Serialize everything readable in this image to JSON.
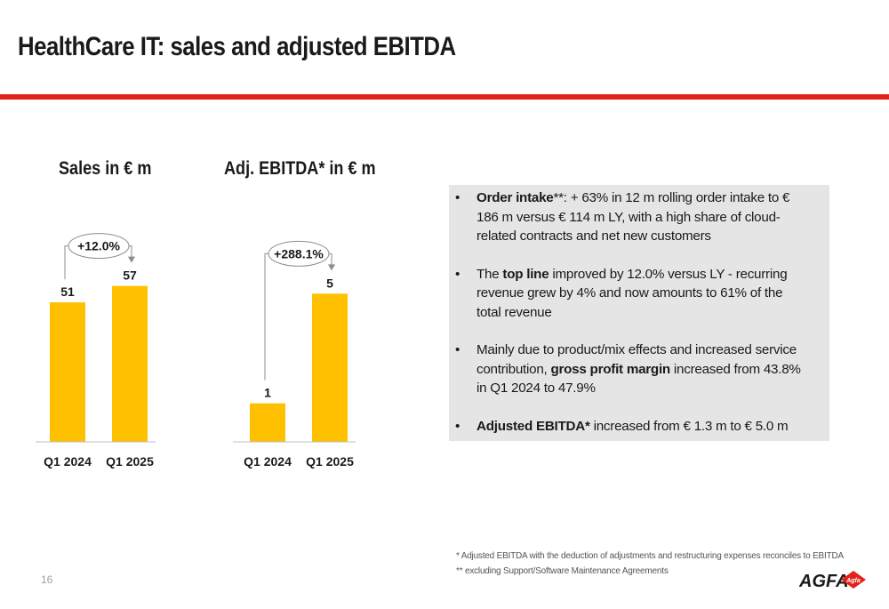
{
  "slide": {
    "title": "HealthCare IT: sales and adjusted EBITDA",
    "page_number": "16"
  },
  "chart_data": [
    {
      "type": "bar",
      "title": "Sales in € m",
      "categories": [
        "Q1 2024",
        "Q1 2025"
      ],
      "values": [
        51,
        57
      ],
      "value_labels": [
        "51",
        "57"
      ],
      "growth_label": "+12.0%",
      "color": "#ffc000"
    },
    {
      "type": "bar",
      "title": "Adj. EBITDA* in € m",
      "categories": [
        "Q1 2024",
        "Q1 2025"
      ],
      "values": [
        1.3,
        5.0
      ],
      "value_labels": [
        "1",
        "5"
      ],
      "growth_label": "+288.1%",
      "color": "#ffc000"
    }
  ],
  "bullets": [
    {
      "parts": [
        {
          "t": "Order intake",
          "b": true
        },
        {
          "t": "**: + 63% in 12 m rolling order intake to € 186 m versus € 114 m LY, with a high share of cloud-related contracts and net new customers",
          "b": false
        }
      ]
    },
    {
      "parts": [
        {
          "t": "The ",
          "b": false
        },
        {
          "t": "top line",
          "b": true
        },
        {
          "t": " improved by 12.0% versus LY - recurring revenue grew by 4% and now amounts to 61% of the total revenue",
          "b": false
        }
      ]
    },
    {
      "parts": [
        {
          "t": "Mainly due to product/mix effects and increased service contribution, ",
          "b": false
        },
        {
          "t": "gross profit margin",
          "b": true
        },
        {
          "t": " increased from 43.8% in Q1 2024 to 47.9%",
          "b": false
        }
      ]
    },
    {
      "parts": [
        {
          "t": "Adjusted EBITDA*",
          "b": true
        },
        {
          "t": " increased from € 1.3 m to € 5.0 m",
          "b": false
        }
      ]
    }
  ],
  "footnotes": [
    "* Adjusted EBITDA with the deduction of adjustments and restructuring expenses reconciles to EBITDA",
    "** excluding Support/Software Maintenance Agreements"
  ],
  "logo": {
    "text": "AGFA",
    "badge": "Agfa",
    "brand_color": "#e2231a"
  }
}
